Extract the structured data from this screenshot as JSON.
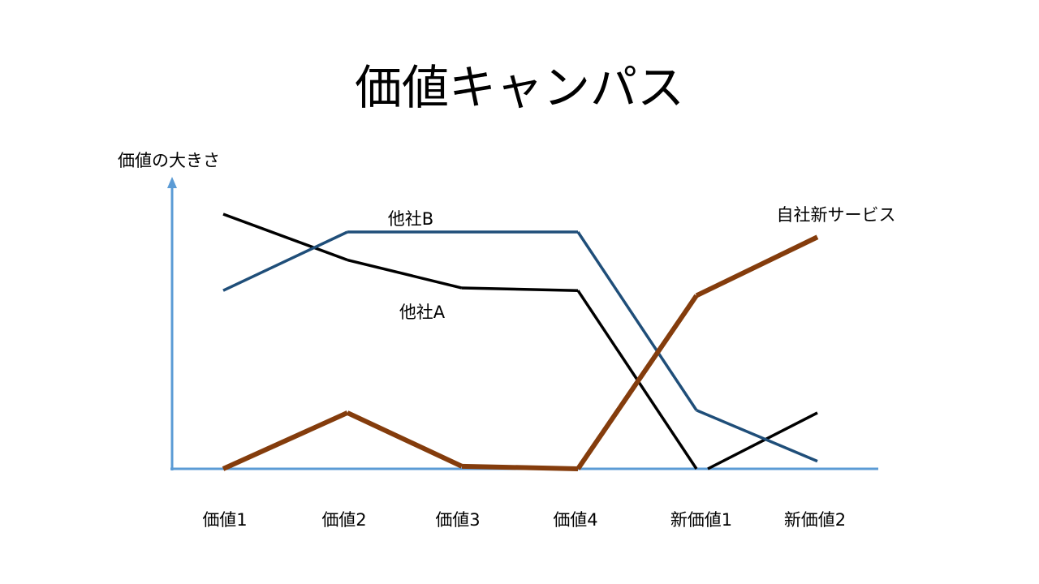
{
  "slide": {
    "title": "価値キャンパス"
  },
  "chart_data": {
    "type": "line",
    "title": "",
    "ylabel": "価値の大きさ",
    "xlabel": "",
    "categories": [
      "価値1",
      "価値2",
      "価値3",
      "価値4",
      "新価値1",
      "新価値2"
    ],
    "ylim": [
      0,
      10
    ],
    "grid": false,
    "axis_color": "#5b9bd5",
    "series": [
      {
        "name": "他社A",
        "color": "#000000",
        "values": [
          10,
          8.2,
          7.1,
          7.0,
          0,
          2.2
        ]
      },
      {
        "name": "他社B",
        "color": "#1f4e79",
        "values": [
          7.0,
          9.3,
          9.3,
          9.3,
          2.3,
          0.3
        ]
      },
      {
        "name": "自社新サービス",
        "color": "#843c0c",
        "values": [
          0,
          2.2,
          0.1,
          0,
          6.8,
          9.1
        ]
      }
    ]
  }
}
